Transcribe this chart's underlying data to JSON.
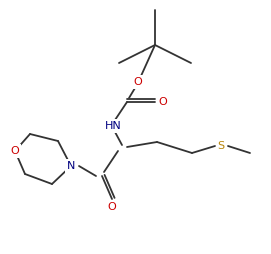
{
  "bg_color": "#ffffff",
  "line_color": "#333333",
  "atom_colors": {
    "O": "#cc0000",
    "N": "#000080",
    "S": "#b8860b",
    "C": "#333333"
  },
  "figsize": [
    2.71,
    2.54
  ],
  "dpi": 100
}
